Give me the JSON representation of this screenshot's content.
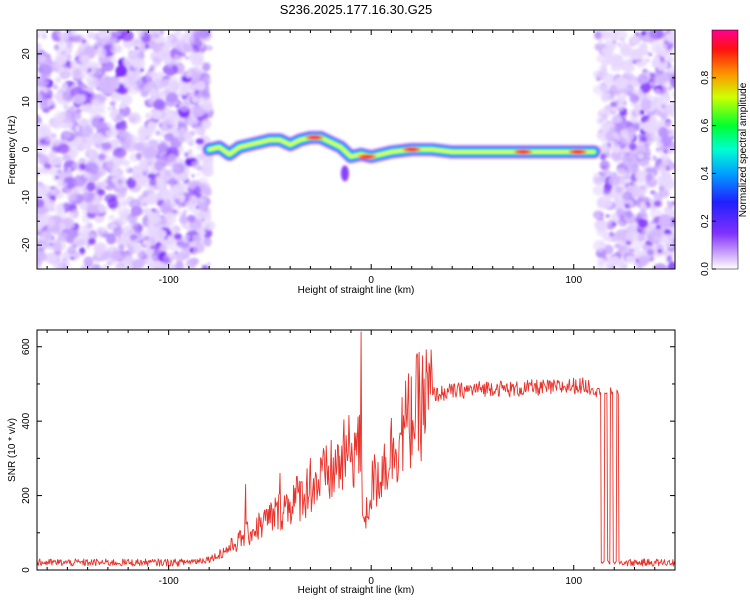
{
  "figure_title": "S236.2025.177.16.30.G25",
  "colors": {
    "snr_line": "#e8322a",
    "axis": "#000000",
    "background": "#ffffff"
  },
  "chart_data": [
    {
      "type": "heatmap",
      "title": "",
      "xlabel": "Height of straight line (km)",
      "ylabel": "Frequency (Hz)",
      "xlim": [
        -165,
        150
      ],
      "ylim": [
        -25,
        25
      ],
      "x_ticks": [
        -100,
        0,
        100
      ],
      "y_ticks": [
        -20,
        -10,
        0,
        10,
        20
      ],
      "colormap": [
        "#ffffff",
        "#c8a0ff",
        "#7020ff",
        "#2020ff",
        "#00c8ff",
        "#00ff90",
        "#ffff00",
        "#ff8000",
        "#ff0000",
        "#ff0090"
      ],
      "colorbar": {
        "label": "Normalized spectral amplitude",
        "range": [
          0.0,
          1.0
        ],
        "ticks": [
          "0.0",
          "0.2",
          "0.4",
          "0.6",
          "0.8"
        ]
      },
      "noise_regions_x": [
        [
          -165,
          -80
        ],
        [
          112,
          150
        ]
      ],
      "signal_track": [
        {
          "x": -80,
          "y": 0.0
        },
        {
          "x": -75,
          "y": 0.5
        },
        {
          "x": -70,
          "y": -1.0
        },
        {
          "x": -65,
          "y": 0.5
        },
        {
          "x": -60,
          "y": 1.0
        },
        {
          "x": -55,
          "y": 1.5
        },
        {
          "x": -50,
          "y": 2.0
        },
        {
          "x": -45,
          "y": 2.0
        },
        {
          "x": -40,
          "y": 1.0
        },
        {
          "x": -35,
          "y": 2.0
        },
        {
          "x": -30,
          "y": 2.5
        },
        {
          "x": -25,
          "y": 2.5
        },
        {
          "x": -20,
          "y": 1.5
        },
        {
          "x": -15,
          "y": 0.5
        },
        {
          "x": -10,
          "y": -1.5
        },
        {
          "x": -5,
          "y": -1.0
        },
        {
          "x": 0,
          "y": -1.5
        },
        {
          "x": 5,
          "y": -1.0
        },
        {
          "x": 10,
          "y": -0.5
        },
        {
          "x": 20,
          "y": 0.0
        },
        {
          "x": 30,
          "y": 0.0
        },
        {
          "x": 40,
          "y": -0.5
        },
        {
          "x": 50,
          "y": -0.5
        },
        {
          "x": 60,
          "y": -0.5
        },
        {
          "x": 70,
          "y": -0.5
        },
        {
          "x": 80,
          "y": -0.5
        },
        {
          "x": 90,
          "y": -0.5
        },
        {
          "x": 100,
          "y": -0.5
        },
        {
          "x": 110,
          "y": -0.5
        }
      ],
      "peaks": [
        {
          "x": -28,
          "y": 2.5
        },
        {
          "x": -2,
          "y": -1.5
        },
        {
          "x": 20,
          "y": 0.0
        },
        {
          "x": 75,
          "y": -0.5
        },
        {
          "x": 102,
          "y": -0.5
        }
      ]
    },
    {
      "type": "line",
      "title": "",
      "xlabel": "Height of straight line (km)",
      "ylabel": "SNR (10 * v/v)",
      "xlim": [
        -165,
        150
      ],
      "ylim": [
        0,
        645
      ],
      "x_ticks": [
        -100,
        0,
        100
      ],
      "y_ticks": [
        0,
        200,
        400,
        600
      ],
      "grid": false,
      "series": [
        {
          "x": [
            -165,
            -150,
            -130,
            -110,
            -95,
            -85,
            -80,
            -75,
            -70,
            -65,
            -60,
            -55,
            -50,
            -45,
            -40,
            -35,
            -30,
            -25,
            -20,
            -15,
            -10,
            -6,
            -4,
            -2,
            0,
            5,
            10,
            15,
            20,
            25,
            30,
            40,
            50,
            60,
            70,
            80,
            90,
            100,
            105,
            110,
            112,
            114,
            116,
            118,
            120,
            122,
            125,
            135,
            150
          ],
          "y": [
            20,
            20,
            20,
            20,
            20,
            25,
            30,
            40,
            60,
            80,
            100,
            120,
            140,
            160,
            180,
            200,
            220,
            240,
            260,
            290,
            320,
            340,
            160,
            150,
            220,
            270,
            320,
            370,
            410,
            450,
            470,
            480,
            485,
            490,
            485,
            490,
            490,
            495,
            495,
            490,
            485,
            20,
            480,
            20,
            470,
            20,
            20,
            20,
            20
          ],
          "spikes": [
            {
              "x": -5,
              "y": 640
            },
            {
              "x": -62,
              "y": 230
            },
            {
              "x": -45,
              "y": 260
            },
            {
              "x": -30,
              "y": 300
            }
          ]
        }
      ]
    }
  ]
}
